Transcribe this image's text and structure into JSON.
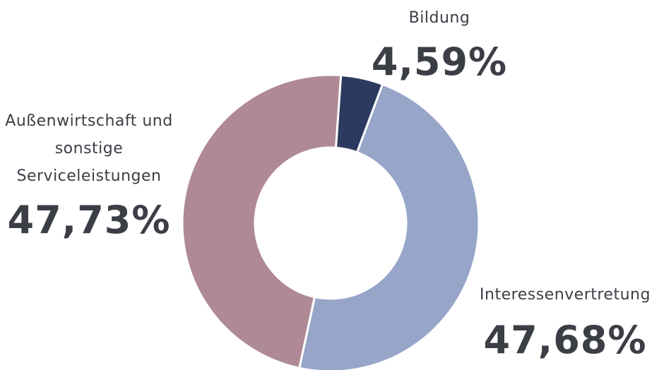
{
  "chart_data": {
    "type": "donut",
    "categories": [
      "Bildung",
      "Interessenvertretung",
      "Außenwirtschaft und sonstige Serviceleistungen"
    ],
    "values": [
      4.59,
      47.68,
      47.73
    ],
    "value_labels": [
      "4,59%",
      "47,68%",
      "47,73%"
    ],
    "colors": [
      "#2b3a5e",
      "#96a5c8",
      "#af8a94"
    ]
  }
}
